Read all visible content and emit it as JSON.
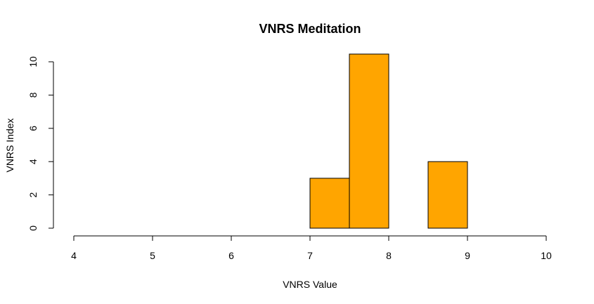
{
  "chart_data": {
    "type": "bar",
    "title": "VNRS Meditation",
    "xlabel": "VNRS Value",
    "ylabel": "VNRS Index",
    "xlim": [
      4,
      10
    ],
    "ylim": [
      0,
      10
    ],
    "x_ticks": [
      "4",
      "5",
      "6",
      "7",
      "8",
      "9",
      "10"
    ],
    "y_ticks": [
      "0",
      "2",
      "4",
      "6",
      "8",
      "10"
    ],
    "bins": [
      {
        "start": 7.0,
        "end": 7.5,
        "value": 3
      },
      {
        "start": 7.5,
        "end": 8.0,
        "value": 11
      },
      {
        "start": 8.0,
        "end": 8.5,
        "value": 0
      },
      {
        "start": 8.5,
        "end": 9.0,
        "value": 4
      }
    ],
    "bar_color": "#FFA500",
    "grid": false,
    "legend": "none"
  }
}
